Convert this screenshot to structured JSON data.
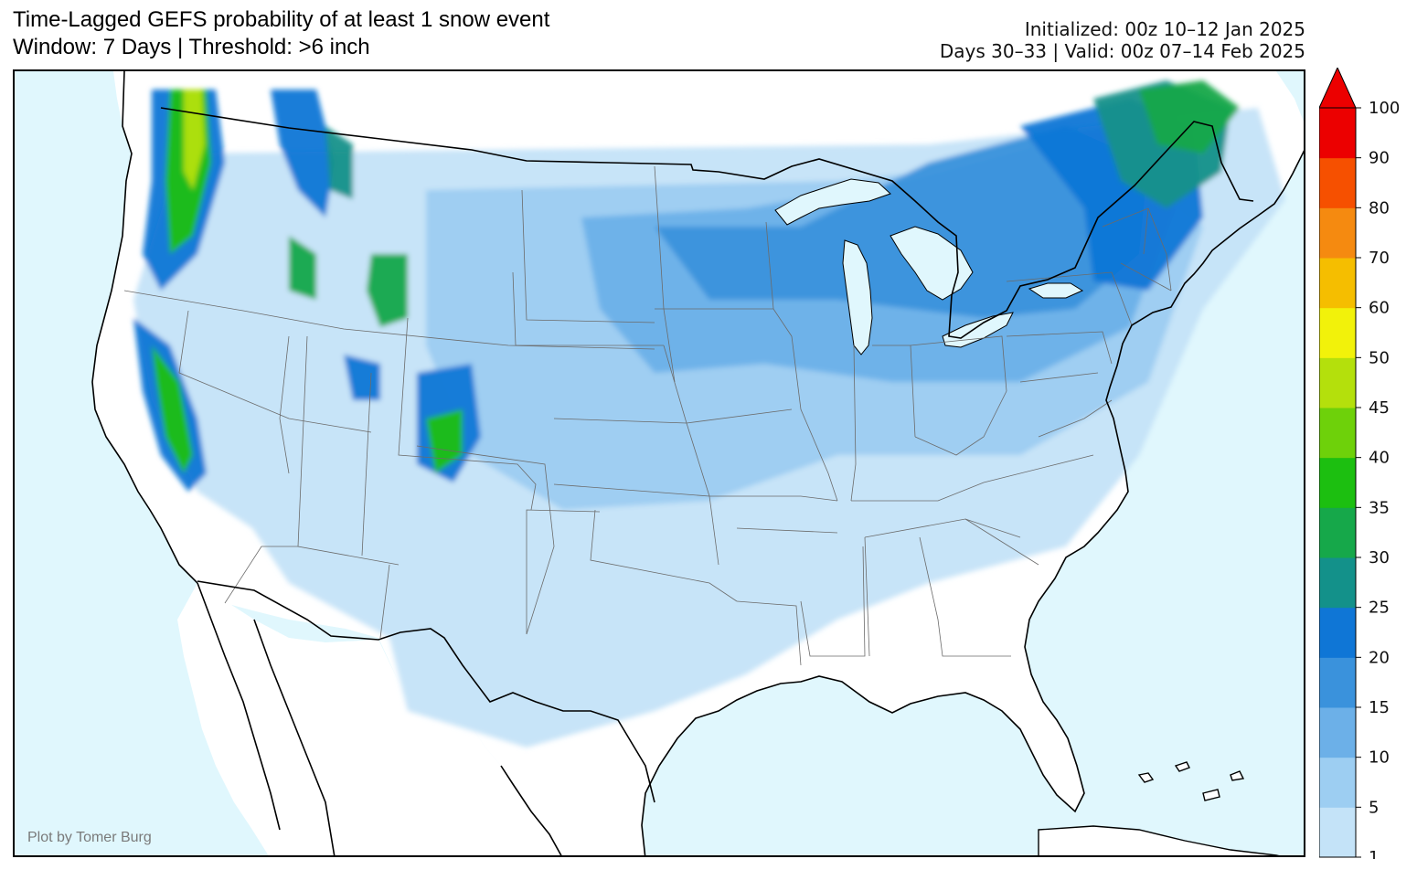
{
  "header": {
    "title_line1": "Time-Lagged GEFS probability of at least 1 snow event",
    "title_line2": "Window: 7 Days | Threshold: >6 inch",
    "initialized": "Initialized: 00z 10–12 Jan 2025",
    "valid": "Days 30–33 | Valid: 00z 07–14 Feb 2025"
  },
  "credit": "Plot by Tomer Burg",
  "colorbar": {
    "ticks": [
      "1",
      "5",
      "10",
      "15",
      "20",
      "25",
      "30",
      "35",
      "40",
      "45",
      "50",
      "60",
      "70",
      "80",
      "90",
      "100"
    ],
    "colors": [
      "#c4e3f8",
      "#9dcef2",
      "#6cb0e8",
      "#3a92dc",
      "#0f76d6",
      "#13918a",
      "#16a84a",
      "#1cbf10",
      "#6ed10a",
      "#b4e00c",
      "#f2f20a",
      "#f5be00",
      "#f58a10",
      "#f65000",
      "#ec0000"
    ],
    "extend": "max"
  },
  "map": {
    "ocean_color": "#e0f7fd",
    "land_color": "#ffffff",
    "region": "Contiguous United States",
    "shaded_field": "probability (%)"
  }
}
